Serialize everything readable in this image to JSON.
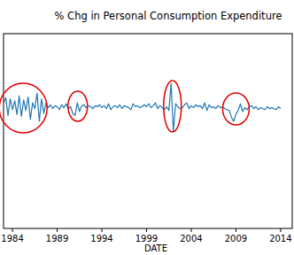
{
  "chart_data": {
    "type": "line",
    "title": "% Chg in Personal Consumption Expenditure",
    "x_label": "DATE",
    "x": [
      1983.0,
      1983.25,
      1983.5,
      1983.75,
      1984.0,
      1984.25,
      1984.5,
      1984.75,
      1985.0,
      1985.25,
      1985.5,
      1985.75,
      1986.0,
      1986.25,
      1986.5,
      1986.75,
      1987.0,
      1987.25,
      1987.5,
      1987.75,
      1988.0,
      1988.25,
      1988.5,
      1988.75,
      1989.0,
      1989.25,
      1989.5,
      1989.75,
      1990.0,
      1990.25,
      1990.5,
      1990.75,
      1991.0,
      1991.25,
      1991.5,
      1991.75,
      1992.0,
      1992.25,
      1992.5,
      1992.75,
      1993.0,
      1993.25,
      1993.5,
      1993.75,
      1994.0,
      1994.25,
      1994.5,
      1994.75,
      1995.0,
      1995.25,
      1995.5,
      1995.75,
      1996.0,
      1996.25,
      1996.5,
      1996.75,
      1997.0,
      1997.25,
      1997.5,
      1997.75,
      1998.0,
      1998.25,
      1998.5,
      1998.75,
      1999.0,
      1999.25,
      1999.5,
      1999.75,
      2000.0,
      2000.25,
      2000.5,
      2000.75,
      2001.0,
      2001.25,
      2001.5,
      2001.75,
      2002.0,
      2002.25,
      2002.5,
      2002.75,
      2003.0,
      2003.25,
      2003.5,
      2003.75,
      2004.0,
      2004.25,
      2004.5,
      2004.75,
      2005.0,
      2005.25,
      2005.5,
      2005.75,
      2006.0,
      2006.25,
      2006.5,
      2006.75,
      2007.0,
      2007.25,
      2007.5,
      2007.75,
      2008.0,
      2008.25,
      2008.5,
      2008.75,
      2009.0,
      2009.25,
      2009.5,
      2009.75,
      2010.0,
      2010.25,
      2010.5,
      2010.75,
      2011.0,
      2011.25,
      2011.5,
      2011.75,
      2012.0,
      2012.25,
      2012.5,
      2012.75,
      2013.0,
      2013.25,
      2013.5,
      2013.75,
      2014.0
    ],
    "values": [
      0.9,
      1.4,
      -0.4,
      1.3,
      0.2,
      1.1,
      -0.3,
      1.6,
      -0.5,
      1.2,
      0.1,
      1.5,
      -0.8,
      0.9,
      0.3,
      1.9,
      -1.0,
      1.3,
      -0.2,
      0.9,
      0.4,
      0.7,
      0.3,
      0.6,
      0.5,
      0.2,
      0.7,
      0.4,
      0.8,
      0.3,
      0.5,
      -0.2,
      -0.4,
      0.9,
      0.0,
      0.6,
      0.7,
      0.4,
      0.6,
      0.5,
      0.3,
      0.6,
      0.5,
      0.7,
      0.4,
      0.6,
      0.3,
      0.8,
      0.2,
      0.5,
      0.6,
      0.4,
      0.7,
      0.3,
      0.6,
      0.5,
      0.4,
      0.2,
      0.8,
      0.5,
      0.6,
      0.4,
      0.5,
      0.7,
      0.5,
      0.8,
      0.4,
      0.6,
      0.9,
      0.3,
      0.6,
      0.4,
      0.2,
      0.5,
      0.1,
      2.9,
      -2.0,
      0.8,
      0.5,
      0.3,
      0.4,
      0.7,
      0.9,
      0.3,
      0.6,
      0.4,
      0.7,
      0.5,
      0.6,
      0.3,
      0.9,
      0.1,
      0.7,
      0.4,
      0.5,
      0.3,
      0.6,
      0.4,
      0.5,
      0.3,
      0.2,
      0.1,
      -0.6,
      -1.0,
      -0.3,
      0.1,
      0.8,
      0.0,
      0.4,
      0.2,
      0.5,
      0.6,
      0.3,
      0.5,
      0.2,
      0.4,
      0.3,
      0.2,
      0.5,
      0.3,
      0.4,
      0.3,
      0.2,
      0.5,
      0.3
    ],
    "color": "#1f77b4",
    "xlim": [
      1983.0,
      2015.3
    ],
    "xticks": [
      1984,
      1989,
      1994,
      1999,
      2004,
      2009,
      2014
    ],
    "ylim": [
      -12,
      8
    ],
    "grid": false,
    "tick_labels": "x"
  }
}
